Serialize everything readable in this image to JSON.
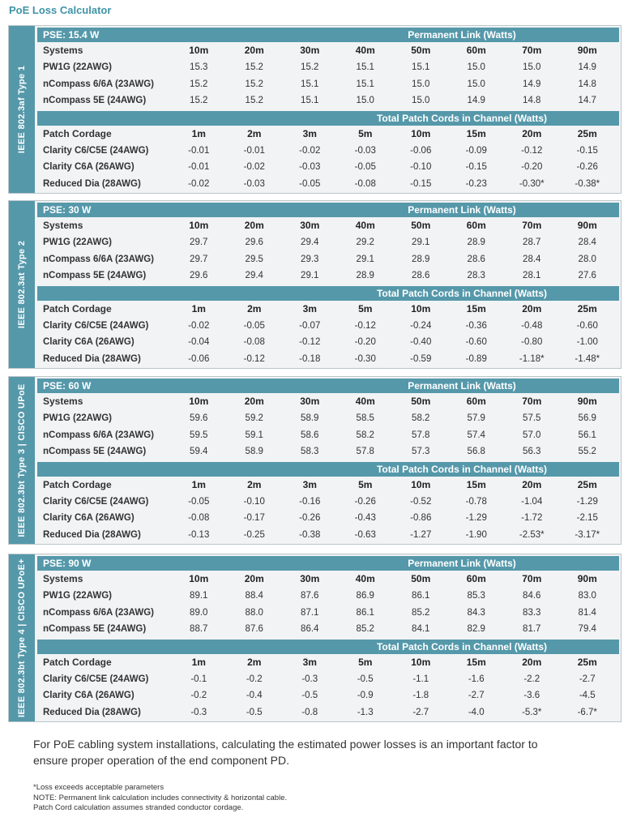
{
  "title": "PoE Loss Calculator",
  "permanent_link_label": "Permanent Link (Watts)",
  "patch_label": "Total Patch Cords in Channel (Watts)",
  "systems_label": "Systems",
  "cordage_label": "Patch Cordage",
  "link_lengths": [
    "10m",
    "20m",
    "30m",
    "40m",
    "50m",
    "60m",
    "70m",
    "90m"
  ],
  "patch_lengths": [
    "1m",
    "2m",
    "3m",
    "5m",
    "10m",
    "15m",
    "20m",
    "25m"
  ],
  "blocks": [
    {
      "side": "IEEE 802.3af Type 1",
      "pse": "PSE: 15.4 W",
      "systems": [
        {
          "name": "PW1G (22AWG)",
          "values": [
            "15.3",
            "15.2",
            "15.2",
            "15.1",
            "15.1",
            "15.0",
            "15.0",
            "14.9"
          ]
        },
        {
          "name": "nCompass 6/6A (23AWG)",
          "values": [
            "15.2",
            "15.2",
            "15.1",
            "15.1",
            "15.0",
            "15.0",
            "14.9",
            "14.8"
          ]
        },
        {
          "name": "nCompass 5E (24AWG)",
          "values": [
            "15.2",
            "15.2",
            "15.1",
            "15.0",
            "15.0",
            "14.9",
            "14.8",
            "14.7"
          ]
        }
      ],
      "cords": [
        {
          "name": "Clarity C6/C5E (24AWG)",
          "values": [
            "-0.01",
            "-0.01",
            "-0.02",
            "-0.03",
            "-0.06",
            "-0.09",
            "-0.12",
            "-0.15"
          ]
        },
        {
          "name": "Clarity C6A (26AWG)",
          "values": [
            "-0.01",
            "-0.02",
            "-0.03",
            "-0.05",
            "-0.10",
            "-0.15",
            "-0.20",
            "-0.26"
          ]
        },
        {
          "name": "Reduced Dia (28AWG)",
          "values": [
            "-0.02",
            "-0.03",
            "-0.05",
            "-0.08",
            "-0.15",
            "-0.23",
            "-0.30*",
            "-0.38*"
          ]
        }
      ]
    },
    {
      "side": "IEEE 802.3at Type 2",
      "pse": "PSE: 30 W",
      "systems": [
        {
          "name": "PW1G (22AWG)",
          "values": [
            "29.7",
            "29.6",
            "29.4",
            "29.2",
            "29.1",
            "28.9",
            "28.7",
            "28.4"
          ]
        },
        {
          "name": "nCompass 6/6A (23AWG)",
          "values": [
            "29.7",
            "29.5",
            "29.3",
            "29.1",
            "28.9",
            "28.6",
            "28.4",
            "28.0"
          ]
        },
        {
          "name": "nCompass 5E (24AWG)",
          "values": [
            "29.6",
            "29.4",
            "29.1",
            "28.9",
            "28.6",
            "28.3",
            "28.1",
            "27.6"
          ]
        }
      ],
      "cords": [
        {
          "name": "Clarity C6/C5E (24AWG)",
          "values": [
            "-0.02",
            "-0.05",
            "-0.07",
            "-0.12",
            "-0.24",
            "-0.36",
            "-0.48",
            "-0.60"
          ]
        },
        {
          "name": "Clarity C6A (26AWG)",
          "values": [
            "-0.04",
            "-0.08",
            "-0.12",
            "-0.20",
            "-0.40",
            "-0.60",
            "-0.80",
            "-1.00"
          ]
        },
        {
          "name": "Reduced Dia (28AWG)",
          "values": [
            "-0.06",
            "-0.12",
            "-0.18",
            "-0.30",
            "-0.59",
            "-0.89",
            "-1.18*",
            "-1.48*"
          ]
        }
      ]
    },
    {
      "side": "IEEE 802.3bt Type 3 | CISCO UPoE",
      "pse": "PSE: 60 W",
      "systems": [
        {
          "name": "PW1G (22AWG)",
          "values": [
            "59.6",
            "59.2",
            "58.9",
            "58.5",
            "58.2",
            "57.9",
            "57.5",
            "56.9"
          ]
        },
        {
          "name": "nCompass 6/6A (23AWG)",
          "values": [
            "59.5",
            "59.1",
            "58.6",
            "58.2",
            "57.8",
            "57.4",
            "57.0",
            "56.1"
          ]
        },
        {
          "name": "nCompass 5E (24AWG)",
          "values": [
            "59.4",
            "58.9",
            "58.3",
            "57.8",
            "57.3",
            "56.8",
            "56.3",
            "55.2"
          ]
        }
      ],
      "cords": [
        {
          "name": "Clarity C6/C5E (24AWG)",
          "values": [
            "-0.05",
            "-0.10",
            "-0.16",
            "-0.26",
            "-0.52",
            "-0.78",
            "-1.04",
            "-1.29"
          ]
        },
        {
          "name": "Clarity C6A (26AWG)",
          "values": [
            "-0.08",
            "-0.17",
            "-0.26",
            "-0.43",
            "-0.86",
            "-1.29",
            "-1.72",
            "-2.15"
          ]
        },
        {
          "name": "Reduced Dia (28AWG)",
          "values": [
            "-0.13",
            "-0.25",
            "-0.38",
            "-0.63",
            "-1.27",
            "-1.90",
            "-2.53*",
            "-3.17*"
          ]
        }
      ]
    },
    {
      "side": "IEEE 802.3bt Type 4 | CISCO UPoE+",
      "pse": "PSE: 90 W",
      "systems": [
        {
          "name": "PW1G (22AWG)",
          "values": [
            "89.1",
            "88.4",
            "87.6",
            "86.9",
            "86.1",
            "85.3",
            "84.6",
            "83.0"
          ]
        },
        {
          "name": "nCompass 6/6A (23AWG)",
          "values": [
            "89.0",
            "88.0",
            "87.1",
            "86.1",
            "85.2",
            "84.3",
            "83.3",
            "81.4"
          ]
        },
        {
          "name": "nCompass 5E (24AWG)",
          "values": [
            "88.7",
            "87.6",
            "86.4",
            "85.2",
            "84.1",
            "82.9",
            "81.7",
            "79.4"
          ]
        }
      ],
      "cords": [
        {
          "name": "Clarity C6/C5E (24AWG)",
          "values": [
            "-0.1",
            "-0.2",
            "-0.3",
            "-0.5",
            "-1.1",
            "-1.6",
            "-2.2",
            "-2.7"
          ]
        },
        {
          "name": "Clarity C6A (26AWG)",
          "values": [
            "-0.2",
            "-0.4",
            "-0.5",
            "-0.9",
            "-1.8",
            "-2.7",
            "-3.6",
            "-4.5"
          ]
        },
        {
          "name": "Reduced Dia (28AWG)",
          "values": [
            "-0.3",
            "-0.5",
            "-0.8",
            "-1.3",
            "-2.7",
            "-4.0",
            "-5.3*",
            "-6.7*"
          ]
        }
      ]
    }
  ],
  "note": "For PoE cabling system installations, calculating the estimated power losses is an important factor to ensure proper operation of the end component PD.",
  "footnotes": [
    "*Loss exceeds acceptable parameters",
    "NOTE: Permanent link calculation includes connectivity & horizontal cable.",
    "Patch Cord calculation assumes stranded conductor cordage."
  ]
}
